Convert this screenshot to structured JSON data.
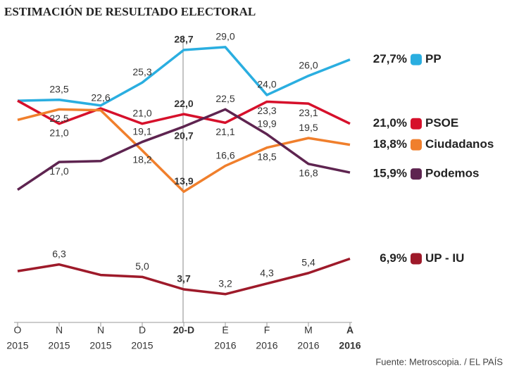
{
  "chart_data": {
    "type": "line",
    "title": "ESTIMACIÓN DE RESULTADO ELECTORAL",
    "source": "Fuente: Metroscopia. / EL PAÍS",
    "categories": [
      [
        "O",
        "2015"
      ],
      [
        "N",
        "2015"
      ],
      [
        "N",
        "2015"
      ],
      [
        "D",
        "2015"
      ],
      [
        "20-D"
      ],
      [
        "E",
        "2016"
      ],
      [
        "F",
        "2016"
      ],
      [
        "M",
        "2016"
      ],
      [
        "A",
        "2016"
      ]
    ],
    "series": [
      {
        "name": "PP",
        "color": "#2aaee0",
        "end_label": "27,7%",
        "values": [
          23.4,
          23.5,
          22.9,
          25.3,
          28.7,
          29.0,
          24.0,
          26.0,
          27.7
        ],
        "value_labels": [
          null,
          "23,5",
          null,
          "25,3",
          "28,7",
          "29,0",
          "24,0",
          "26,0",
          null
        ]
      },
      {
        "name": "PSOE",
        "color": "#d6102b",
        "end_label": "21,0%",
        "values": [
          23.4,
          21.0,
          22.6,
          21.0,
          22.0,
          21.1,
          23.3,
          23.1,
          21.0
        ],
        "value_labels": [
          null,
          "21,0",
          "22,6",
          "21,0",
          "22,0",
          "21,1",
          "23,3",
          "23,1",
          null
        ]
      },
      {
        "name": "Ciudadanos",
        "color": "#f07f2c",
        "end_label": "18,8%",
        "values": [
          21.4,
          22.5,
          22.4,
          18.2,
          13.9,
          16.6,
          18.5,
          19.5,
          18.8
        ],
        "value_labels": [
          null,
          "22,5",
          null,
          "18,2",
          "13,9",
          "16,6",
          "18,5",
          "19,5",
          null
        ]
      },
      {
        "name": "Podemos",
        "color": "#5e2450",
        "end_label": "15,9%",
        "values": [
          14.1,
          17.0,
          17.1,
          19.1,
          20.7,
          22.5,
          19.9,
          16.8,
          15.9
        ],
        "value_labels": [
          null,
          "17,0",
          null,
          "19,1",
          "20,7",
          "22,5",
          "19,9",
          "16,8",
          null
        ]
      },
      {
        "name": "UP - IU",
        "color": "#9e1a2a",
        "end_label": "6,9%",
        "values": [
          5.6,
          6.3,
          5.2,
          5.0,
          3.7,
          3.2,
          4.3,
          5.4,
          6.9
        ],
        "value_labels": [
          null,
          "6,3",
          null,
          "5,0",
          "3,7",
          "3,2",
          "4,3",
          "5,4",
          null
        ]
      }
    ]
  }
}
